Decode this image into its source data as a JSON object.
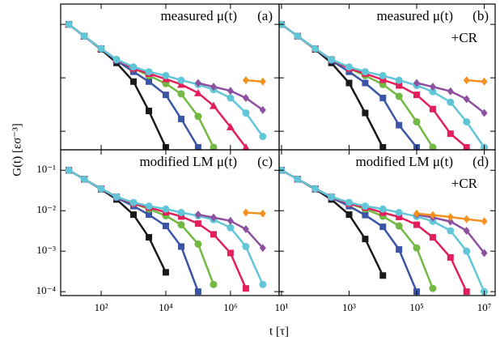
{
  "xlabel": "t [τ]",
  "ylabel": "G(t) [εσ⁻³]",
  "chart_data": [
    {
      "type": "line",
      "log_x": true,
      "log_y": true,
      "title": "measured μ(t)",
      "panel_label": "(a)",
      "x": [
        10,
        30,
        100,
        300,
        1000,
        3000,
        10000,
        30000,
        100000,
        300000,
        1000000,
        3000000,
        10000000
      ],
      "xlim": [
        5.6,
        32000000
      ],
      "ylim": [
        0.00045,
        0.24
      ],
      "xticks": [
        100,
        10000,
        1000000
      ],
      "yticks": [
        0.1,
        0.01,
        0.001
      ],
      "series": [
        {
          "color": "#1a1a1a",
          "marker": "square",
          "values": [
            0.1,
            0.06,
            0.034,
            0.019,
            0.0085,
            0.0024,
            0.0005,
            null,
            null,
            null,
            null,
            null,
            null
          ]
        },
        {
          "color": "#3a55a5",
          "marker": "square",
          "values": [
            0.1,
            0.06,
            0.035,
            0.021,
            0.013,
            0.0085,
            0.0048,
            0.0017,
            0.0005,
            null,
            null,
            null,
            null
          ]
        },
        {
          "color": "#72b843",
          "marker": "circle",
          "values": [
            0.1,
            0.06,
            0.035,
            0.022,
            0.015,
            0.011,
            0.0078,
            0.005,
            0.0019,
            0.0005,
            null,
            null,
            null
          ]
        },
        {
          "color": "#e21f5a",
          "marker": "triangle",
          "values": [
            0.1,
            0.06,
            0.035,
            0.022,
            0.015,
            0.012,
            0.0095,
            0.0075,
            0.0052,
            0.003,
            0.0012,
            0.0005,
            null
          ]
        },
        {
          "color": "#62c6d9",
          "marker": "circle",
          "values": [
            0.1,
            0.06,
            0.035,
            0.022,
            0.016,
            0.013,
            0.011,
            0.009,
            0.0075,
            0.006,
            0.0042,
            0.0022,
            0.0008
          ]
        },
        {
          "color": "#8d4f9f",
          "marker": "diamond",
          "values": [
            null,
            null,
            null,
            null,
            null,
            null,
            null,
            null,
            0.008,
            0.0068,
            0.0057,
            0.0042,
            0.0025
          ]
        },
        {
          "color": "#f3921f",
          "marker": "diamond",
          "values": [
            null,
            null,
            null,
            null,
            null,
            null,
            null,
            null,
            null,
            null,
            null,
            0.009,
            0.0085
          ]
        }
      ]
    },
    {
      "type": "line",
      "log_x": true,
      "log_y": true,
      "title": "measured μ(t)",
      "subtitle": "+CR",
      "panel_label": "(b)",
      "x": [
        10,
        30,
        100,
        300,
        1000,
        3000,
        10000,
        30000,
        100000,
        300000,
        1000000,
        3000000,
        10000000
      ],
      "xlim": [
        8.5,
        21000000
      ],
      "ylim": [
        0.00045,
        0.24
      ],
      "xticks": [
        10,
        1000,
        100000,
        10000000
      ],
      "yticks": [
        0.1,
        0.01,
        0.001
      ],
      "series": [
        {
          "color": "#1a1a1a",
          "marker": "square",
          "values": [
            0.1,
            0.06,
            0.034,
            0.019,
            0.008,
            0.0022,
            0.0005,
            null,
            null,
            null,
            null,
            null,
            null
          ]
        },
        {
          "color": "#3a55a5",
          "marker": "square",
          "values": [
            0.1,
            0.06,
            0.035,
            0.021,
            0.013,
            0.008,
            0.0042,
            0.0013,
            0.0005,
            null,
            null,
            null,
            null
          ]
        },
        {
          "color": "#72b843",
          "marker": "circle",
          "values": [
            0.1,
            0.06,
            0.035,
            0.022,
            0.015,
            0.011,
            0.0075,
            0.0045,
            0.0015,
            0.0005,
            null,
            null,
            null
          ]
        },
        {
          "color": "#e21f5a",
          "marker": "square",
          "values": [
            0.1,
            0.06,
            0.035,
            0.022,
            0.015,
            0.012,
            0.0092,
            0.0072,
            0.0048,
            0.0026,
            0.0009,
            0.0005,
            null
          ]
        },
        {
          "color": "#62c6d9",
          "marker": "circle",
          "values": [
            0.1,
            0.06,
            0.035,
            0.022,
            0.016,
            0.013,
            0.011,
            0.009,
            0.0072,
            0.0055,
            0.0035,
            0.0015,
            0.0005
          ]
        },
        {
          "color": "#8d4f9f",
          "marker": "diamond",
          "values": [
            null,
            null,
            null,
            null,
            null,
            null,
            null,
            null,
            0.008,
            0.0068,
            0.0056,
            0.004,
            0.0022
          ]
        },
        {
          "color": "#f3921f",
          "marker": "diamond",
          "values": [
            null,
            null,
            null,
            null,
            null,
            null,
            null,
            null,
            null,
            null,
            null,
            0.009,
            0.0085
          ]
        }
      ]
    },
    {
      "type": "line",
      "log_x": true,
      "log_y": true,
      "title": "modified LM μ(t)",
      "panel_label": "(c)",
      "x": [
        10,
        30,
        100,
        300,
        1000,
        3000,
        10000,
        30000,
        100000,
        300000,
        1000000,
        3000000,
        10000000
      ],
      "xlim": [
        5.6,
        32000000
      ],
      "ylim": [
        8e-05,
        0.32
      ],
      "xticks": [
        {
          "value": 100,
          "label": "10²"
        },
        {
          "value": 10000,
          "label": "10⁴"
        },
        {
          "value": 1000000,
          "label": "10⁶"
        }
      ],
      "yticks": [
        {
          "value": 0.1,
          "label": "10⁻¹"
        },
        {
          "value": 0.01,
          "label": "10⁻²"
        },
        {
          "value": 0.001,
          "label": "10⁻³"
        },
        {
          "value": 0.0001,
          "label": "10⁻⁴"
        }
      ],
      "series": [
        {
          "color": "#1a1a1a",
          "marker": "square",
          "values": [
            0.1,
            0.06,
            0.034,
            0.019,
            0.008,
            0.0022,
            0.0003,
            null,
            null,
            null,
            null,
            null,
            null
          ]
        },
        {
          "color": "#3a55a5",
          "marker": "square",
          "values": [
            0.1,
            0.06,
            0.035,
            0.021,
            0.013,
            0.008,
            0.0042,
            0.0013,
            0.0001,
            null,
            null,
            null,
            null
          ]
        },
        {
          "color": "#72b843",
          "marker": "circle",
          "values": [
            0.1,
            0.06,
            0.035,
            0.022,
            0.015,
            0.011,
            0.0075,
            0.0045,
            0.0015,
            0.00015,
            null,
            null,
            null
          ]
        },
        {
          "color": "#e21f5a",
          "marker": "square",
          "values": [
            0.1,
            0.06,
            0.035,
            0.022,
            0.015,
            0.012,
            0.0092,
            0.0072,
            0.0048,
            0.0026,
            0.0009,
            0.00012,
            null
          ]
        },
        {
          "color": "#62c6d9",
          "marker": "circle",
          "values": [
            0.1,
            0.06,
            0.035,
            0.022,
            0.016,
            0.013,
            0.011,
            0.009,
            0.0075,
            0.006,
            0.0038,
            0.0013,
            0.00015
          ]
        },
        {
          "color": "#8d4f9f",
          "marker": "diamond",
          "values": [
            null,
            null,
            null,
            null,
            null,
            null,
            null,
            null,
            0.008,
            0.0068,
            0.0056,
            0.0035,
            0.0012
          ]
        },
        {
          "color": "#f3921f",
          "marker": "diamond",
          "values": [
            null,
            null,
            null,
            null,
            null,
            null,
            null,
            null,
            null,
            null,
            null,
            0.009,
            0.0085
          ]
        }
      ]
    },
    {
      "type": "line",
      "log_x": true,
      "log_y": true,
      "title": "modified LM μ(t)",
      "subtitle": "+CR",
      "panel_label": "(d)",
      "x": [
        10,
        30,
        100,
        300,
        1000,
        3000,
        10000,
        30000,
        100000,
        300000,
        1000000,
        3000000,
        10000000
      ],
      "xlim": [
        8.5,
        21000000
      ],
      "ylim": [
        8e-05,
        0.32
      ],
      "xticks": [
        {
          "value": 10,
          "label": "10¹"
        },
        {
          "value": 1000,
          "label": "10³"
        },
        {
          "value": 100000,
          "label": "10⁵"
        },
        {
          "value": 10000000,
          "label": "10⁷"
        }
      ],
      "yticks": [
        0.1,
        0.01,
        0.001,
        0.0001
      ],
      "series": [
        {
          "color": "#1a1a1a",
          "marker": "square",
          "values": [
            0.1,
            0.06,
            0.034,
            0.019,
            0.008,
            0.002,
            0.00025,
            null,
            null,
            null,
            null,
            null,
            null
          ]
        },
        {
          "color": "#3a55a5",
          "marker": "square",
          "values": [
            0.1,
            0.06,
            0.035,
            0.021,
            0.013,
            0.0078,
            0.004,
            0.0011,
            0.0001,
            null,
            null,
            null,
            null
          ]
        },
        {
          "color": "#72b843",
          "marker": "circle",
          "values": [
            0.1,
            0.06,
            0.035,
            0.022,
            0.015,
            0.011,
            0.0073,
            0.0042,
            0.0012,
            0.00012,
            null,
            null,
            null
          ]
        },
        {
          "color": "#e21f5a",
          "marker": "square",
          "values": [
            0.1,
            0.06,
            0.035,
            0.022,
            0.015,
            0.012,
            0.009,
            0.007,
            0.0045,
            0.0022,
            0.0007,
            0.0001,
            null
          ]
        },
        {
          "color": "#62c6d9",
          "marker": "circle",
          "values": [
            0.1,
            0.06,
            0.035,
            0.022,
            0.016,
            0.013,
            0.011,
            0.009,
            0.0072,
            0.0055,
            0.0032,
            0.001,
            0.0001
          ]
        },
        {
          "color": "#8d4f9f",
          "marker": "diamond",
          "values": [
            null,
            null,
            null,
            null,
            null,
            null,
            null,
            null,
            0.008,
            0.0068,
            0.0054,
            0.0032,
            0.0009
          ]
        },
        {
          "color": "#f3921f",
          "marker": "diamond",
          "values": [
            null,
            null,
            null,
            null,
            null,
            null,
            null,
            null,
            0.0085,
            0.0078,
            0.007,
            0.0062,
            0.0055
          ]
        }
      ]
    }
  ]
}
